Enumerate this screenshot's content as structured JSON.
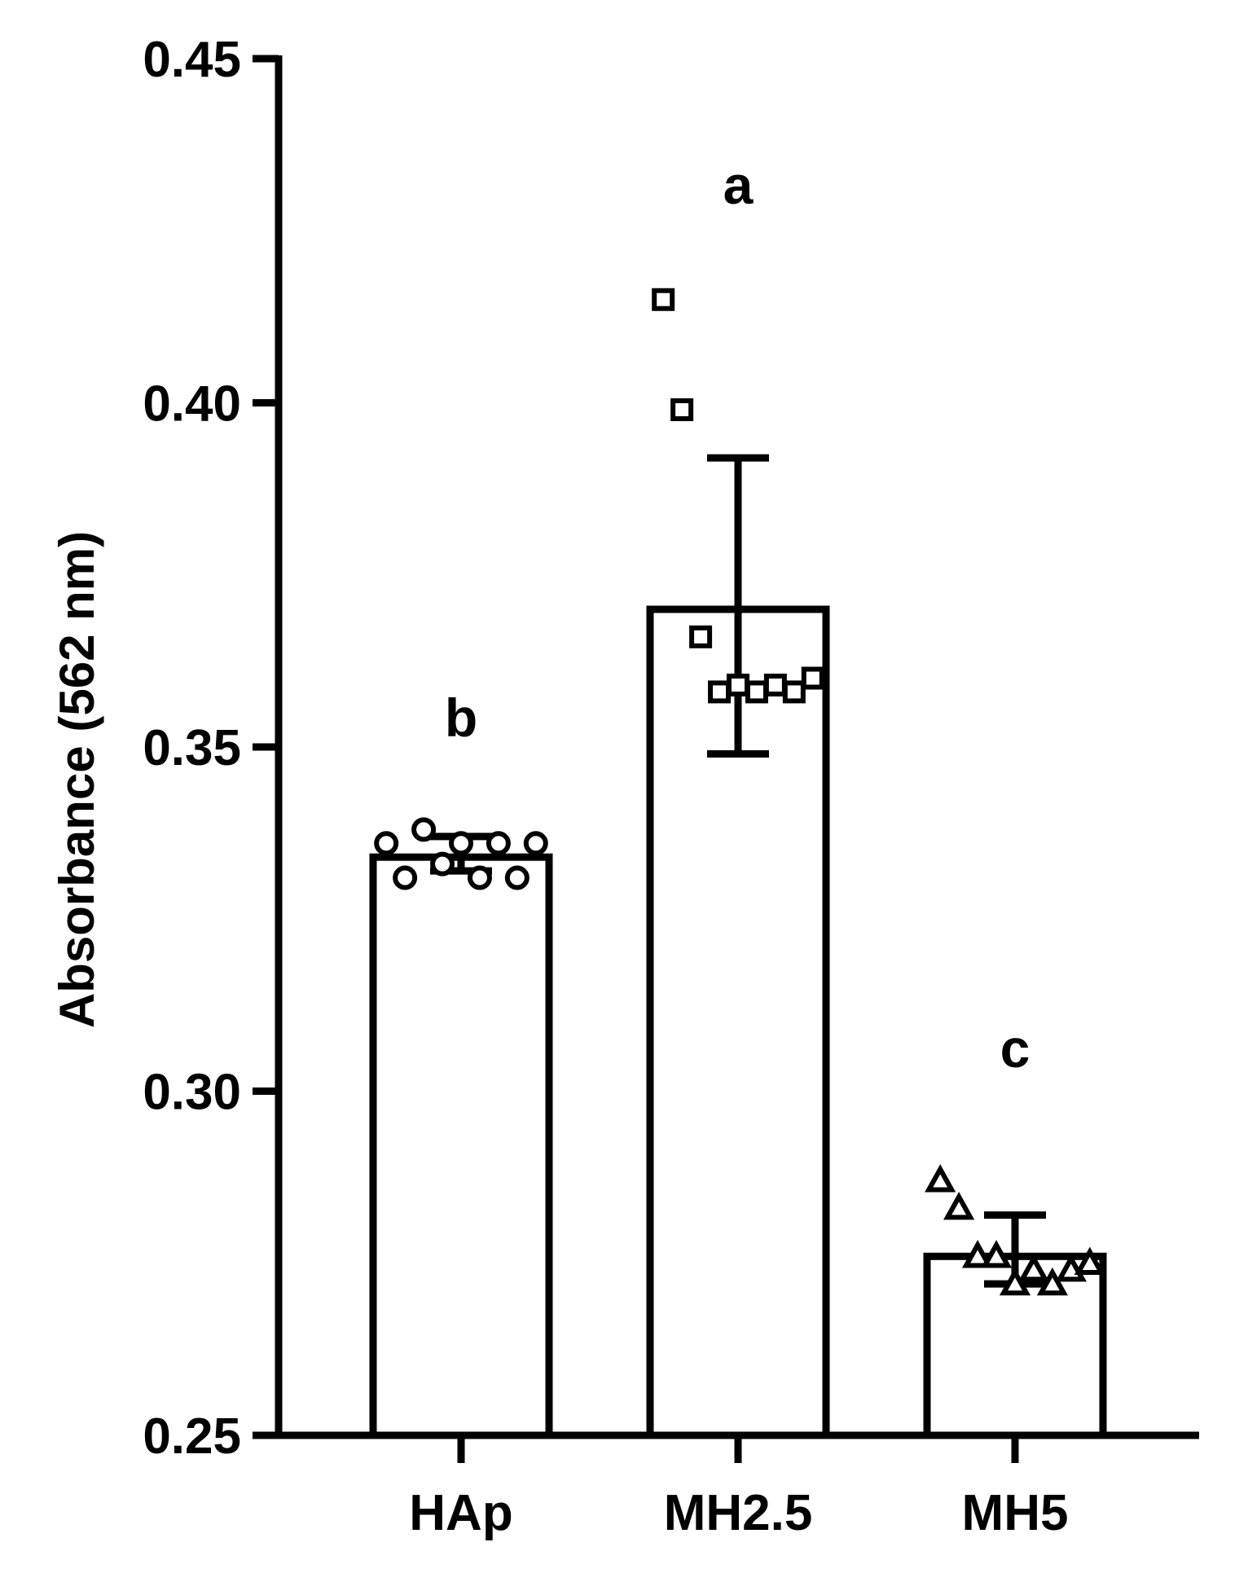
{
  "chart_data": {
    "type": "bar",
    "title": "",
    "xlabel": "",
    "ylabel": "Absorbance (562 nm)",
    "ylim": [
      0.25,
      0.45
    ],
    "yticks": [
      0.25,
      0.3,
      0.35,
      0.4,
      0.45
    ],
    "ytick_labels": [
      "0.25",
      "0.30",
      "0.35",
      "0.40",
      "0.45"
    ],
    "grid": false,
    "categories": [
      "HAp",
      "MH2.5",
      "MH5"
    ],
    "values": [
      0.334,
      0.37,
      0.276
    ],
    "error_low": [
      0.332,
      0.349,
      0.272
    ],
    "error_high": [
      0.337,
      0.392,
      0.282
    ],
    "significance_letters": [
      "b",
      "a",
      "c"
    ],
    "points": [
      {
        "marker": "circle",
        "values": [
          0.336,
          0.331,
          0.338,
          0.333,
          0.336,
          0.331,
          0.336,
          0.331,
          0.336
        ]
      },
      {
        "marker": "square",
        "values": [
          0.415,
          0.399,
          0.366,
          0.358,
          0.359,
          0.358,
          0.359,
          0.358,
          0.36
        ]
      },
      {
        "marker": "triangle",
        "values": [
          0.287,
          0.283,
          0.276,
          0.276,
          0.272,
          0.274,
          0.272,
          0.274,
          0.275
        ]
      }
    ],
    "colors": {
      "stroke": "#000000",
      "fill": "#ffffff"
    }
  }
}
